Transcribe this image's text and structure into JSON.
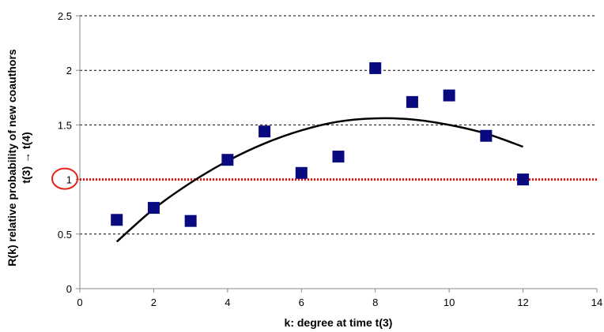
{
  "chart_data": {
    "type": "scatter",
    "xlabel": "k: degree at time t(3)",
    "ylabel_lines": [
      "R(k) relative probability of new coauthors",
      "t(3) → t(4)"
    ],
    "xlim": [
      0,
      14
    ],
    "ylim": [
      0,
      2.5
    ],
    "x_ticks": [
      "0",
      "2",
      "4",
      "6",
      "8",
      "10",
      "12",
      "14"
    ],
    "y_ticks": [
      "0",
      "0.5",
      "1",
      "1.5",
      "2",
      "2.5"
    ],
    "grid": "horizontal-dashed",
    "points": {
      "x": [
        1,
        2,
        3,
        4,
        5,
        6,
        7,
        8,
        9,
        10,
        11,
        12
      ],
      "y": [
        0.63,
        0.74,
        0.62,
        1.18,
        1.44,
        1.06,
        1.21,
        2.02,
        1.71,
        1.77,
        1.4,
        1.0
      ]
    },
    "trendline": {
      "type": "polynomial",
      "x": [
        1,
        2,
        3,
        4,
        5,
        6,
        7,
        8,
        9,
        10,
        11,
        12
      ],
      "y": [
        0.43,
        0.73,
        0.97,
        1.17,
        1.33,
        1.45,
        1.53,
        1.56,
        1.55,
        1.5,
        1.42,
        1.3
      ]
    },
    "reference_line": {
      "y": 1,
      "label": "1"
    },
    "colors": {
      "marker": "#0a0a80",
      "trendline": "#000000",
      "reference_line": "#ff0000",
      "highlight_circle": "#e8201a",
      "grid": "#000000",
      "axis": "#888888"
    }
  }
}
